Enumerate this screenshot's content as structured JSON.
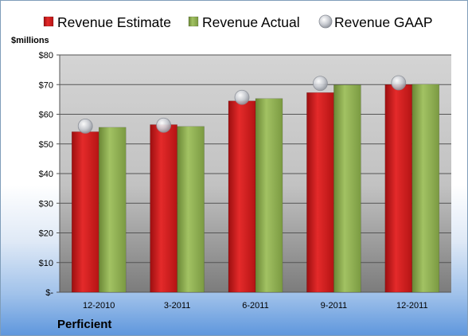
{
  "chart_data": {
    "type": "bar",
    "categories": [
      "12-2010",
      "3-2011",
      "6-2011",
      "9-2011",
      "12-2011"
    ],
    "series": [
      {
        "name": "Revenue Estimate",
        "values": [
          54.1,
          56.5,
          64.5,
          67.3,
          70.0
        ],
        "color": "#d91c1c"
      },
      {
        "name": "Revenue Actual",
        "values": [
          55.6,
          55.9,
          65.3,
          69.9,
          70.1
        ],
        "color": "#8cab4e"
      }
    ],
    "markers": [
      {
        "name": "Revenue GAAP",
        "values": [
          56.0,
          56.3,
          65.7,
          70.4,
          70.6
        ],
        "color": "#c8ccd4"
      }
    ],
    "ylim": [
      0,
      80
    ],
    "yticks": [
      0,
      10,
      20,
      30,
      40,
      50,
      60,
      70,
      80
    ],
    "ytick_labels": [
      "$-",
      "$10",
      "$20",
      "$30",
      "$40",
      "$50",
      "$60",
      "$70",
      "$80"
    ],
    "ylabel": "$millions",
    "company": "Perficient",
    "legend_position": "top",
    "grid": true
  }
}
